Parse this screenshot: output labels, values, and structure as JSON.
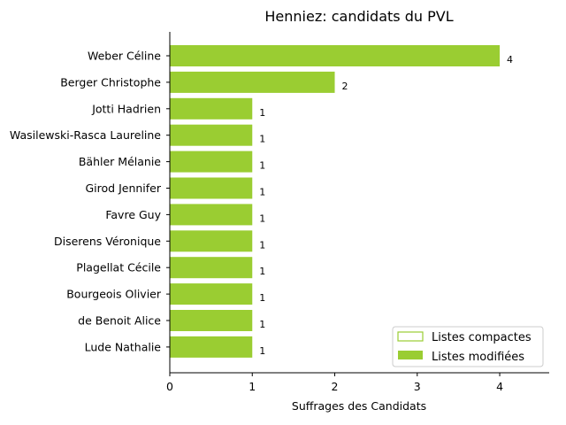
{
  "chart_data": {
    "type": "bar",
    "orientation": "horizontal",
    "title": "Henniez: candidats du PVL",
    "xlabel": "Suffrages des Candidats",
    "ylabel": "",
    "xlim": [
      0,
      4.6
    ],
    "xticks": [
      0,
      1,
      2,
      3,
      4
    ],
    "categories": [
      "Weber Céline",
      "Berger Christophe",
      "Jotti Hadrien",
      "Wasilewski-Rasca Laureline",
      "Bähler Mélanie",
      "Girod Jennifer",
      "Favre Guy",
      "Diserens Véronique",
      "Plagellat Cécile",
      "Bourgeois Olivier",
      "de Benoit Alice",
      "Lude Nathalie"
    ],
    "series": [
      {
        "name": "Listes compactes",
        "style": "outline",
        "values": [
          0,
          0,
          0,
          0,
          0,
          0,
          0,
          0,
          0,
          0,
          0,
          0
        ]
      },
      {
        "name": "Listes modifiées",
        "style": "filled",
        "values": [
          4,
          2,
          1,
          1,
          1,
          1,
          1,
          1,
          1,
          1,
          1,
          1
        ]
      }
    ],
    "data_labels": [
      "4",
      "2",
      "1",
      "1",
      "1",
      "1",
      "1",
      "1",
      "1",
      "1",
      "1",
      "1"
    ],
    "legend_position": "lower-right",
    "colors": {
      "bar": "#9acd32",
      "axis": "#000000"
    }
  }
}
